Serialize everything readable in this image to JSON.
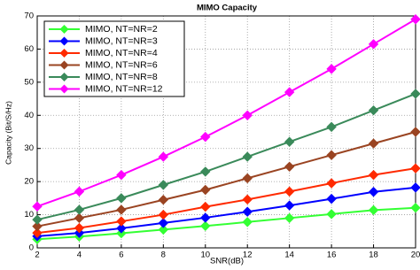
{
  "chart_data": {
    "type": "line",
    "title": "MIMO Capacity",
    "x_label": "SNR(dB)",
    "y_label": "Capacity (Bit/S/Hz)",
    "x": [
      2,
      4,
      6,
      8,
      10,
      12,
      14,
      16,
      18,
      20
    ],
    "xlim": [
      2,
      20
    ],
    "xticks": [
      2,
      4,
      6,
      8,
      10,
      12,
      14,
      16,
      18,
      20
    ],
    "ylim": [
      0,
      70
    ],
    "yticks": [
      0,
      10,
      20,
      30,
      40,
      50,
      60,
      70
    ],
    "grid": true,
    "legend": "upper left",
    "series": [
      {
        "name": "MIMO, NT=NR=2",
        "color": "#33ff33",
        "values": [
          2.6,
          3.4,
          4.4,
          5.5,
          6.6,
          7.8,
          9.0,
          10.2,
          11.4,
          12.1
        ]
      },
      {
        "name": "MIMO, NT=NR=3",
        "color": "#0000ff",
        "values": [
          3.5,
          4.5,
          5.9,
          7.5,
          9.1,
          10.9,
          12.8,
          14.8,
          16.9,
          18.2
        ]
      },
      {
        "name": "MIMO, NT=NR=4",
        "color": "#ff2a00",
        "values": [
          4.5,
          6.0,
          8.0,
          10.0,
          12.4,
          14.6,
          17.0,
          19.5,
          22.0,
          24.0
        ]
      },
      {
        "name": "MIMO, NT=NR=6",
        "color": "#9a4422",
        "values": [
          6.5,
          9.0,
          11.5,
          14.5,
          17.5,
          21.0,
          24.5,
          28.0,
          31.5,
          35.0
        ]
      },
      {
        "name": "MIMO, NT=NR=8",
        "color": "#3a8a5a",
        "values": [
          8.5,
          11.5,
          15.0,
          19.0,
          23.0,
          27.5,
          32.0,
          36.5,
          41.5,
          46.5
        ]
      },
      {
        "name": "MIMO, NT=NR=12",
        "color": "#ff00ff",
        "values": [
          12.5,
          17.0,
          22.0,
          27.5,
          33.5,
          40.0,
          47.0,
          54.0,
          61.5,
          69.0
        ]
      }
    ]
  }
}
